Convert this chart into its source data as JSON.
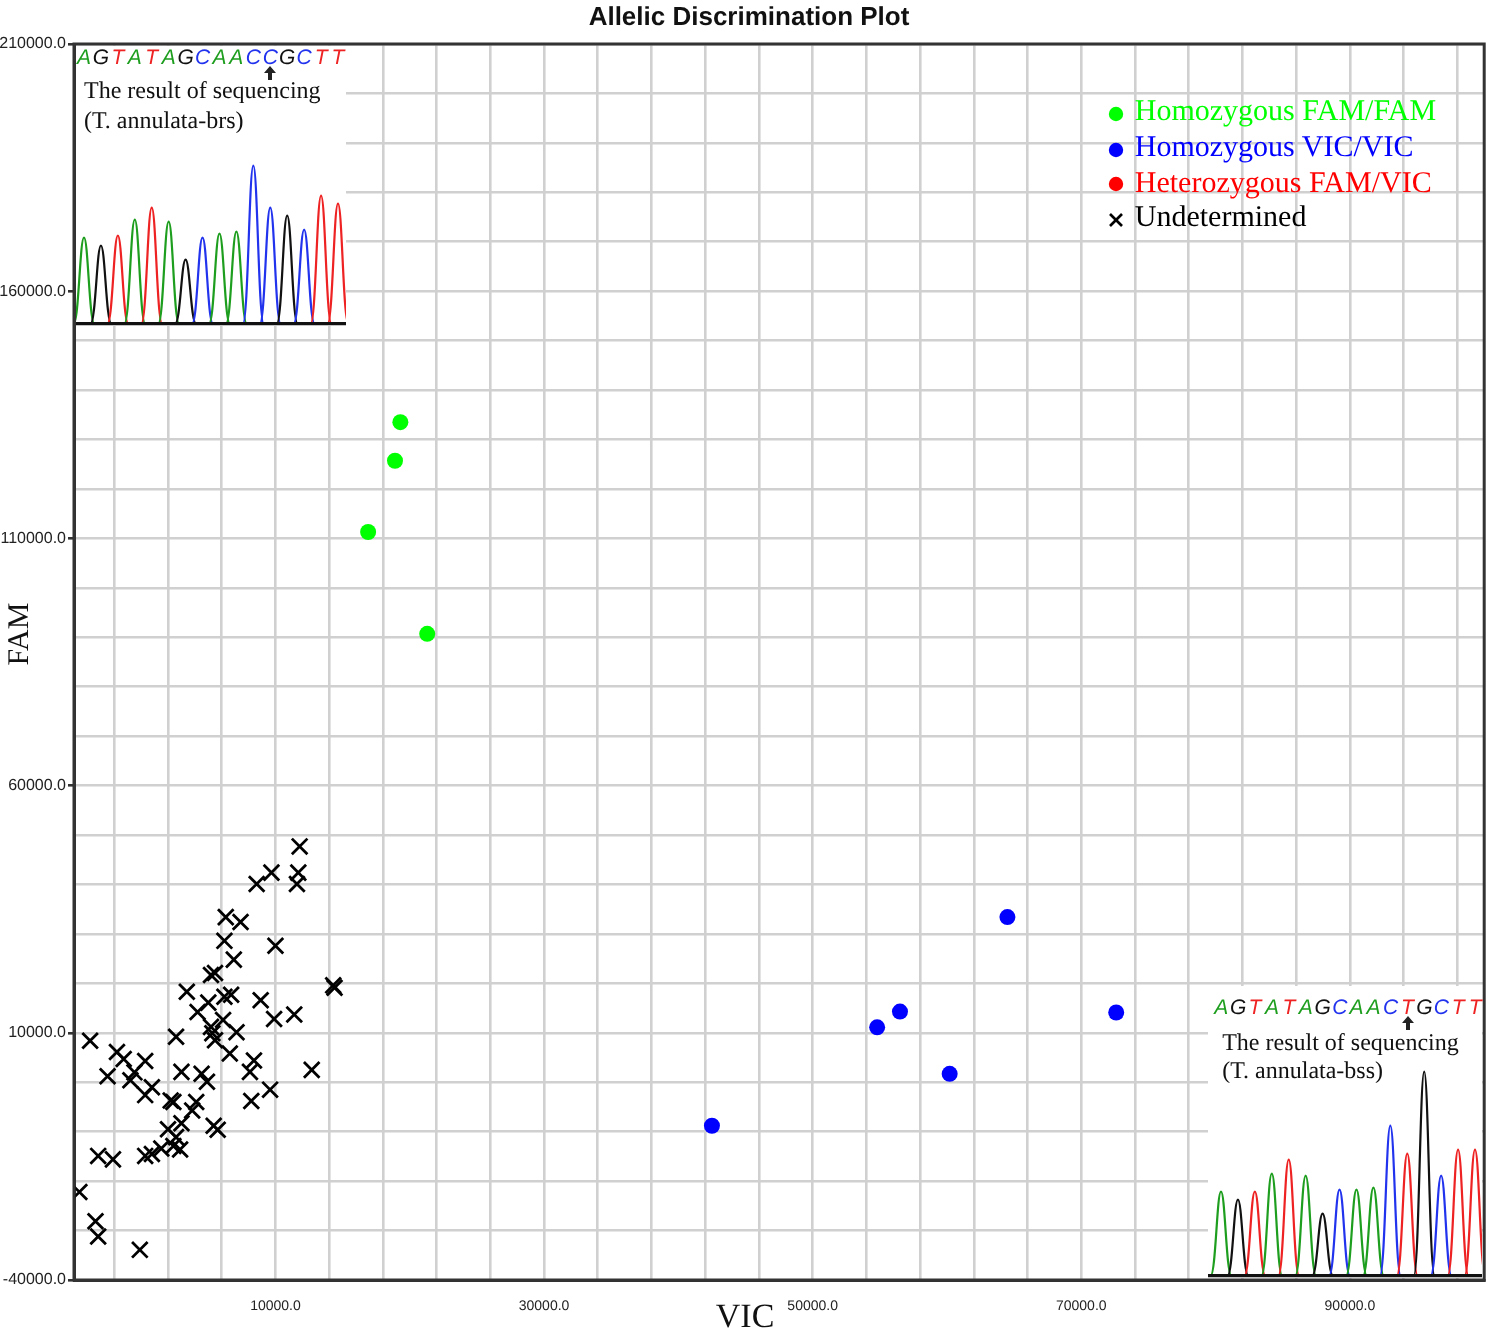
{
  "chart_data": {
    "type": "scatter",
    "title": "Allelic Discrimination Plot",
    "xlabel": "VIC",
    "ylabel": "FAM",
    "xlim": [
      -5000,
      100000
    ],
    "ylim": [
      -40000,
      210000
    ],
    "xticks": [
      {
        "value": -2000,
        "label": null
      },
      {
        "value": 2000,
        "label": null
      },
      {
        "value": 6000,
        "label": null
      },
      {
        "value": 10000,
        "label": "10000.0"
      },
      {
        "value": 14000,
        "label": null
      },
      {
        "value": 18000,
        "label": null
      },
      {
        "value": 22000,
        "label": null
      },
      {
        "value": 26000,
        "label": null
      },
      {
        "value": 30000,
        "label": "30000.0"
      },
      {
        "value": 34000,
        "label": null
      },
      {
        "value": 38000,
        "label": null
      },
      {
        "value": 42000,
        "label": null
      },
      {
        "value": 46000,
        "label": null
      },
      {
        "value": 50000,
        "label": "50000.0"
      },
      {
        "value": 54000,
        "label": null
      },
      {
        "value": 58000,
        "label": null
      },
      {
        "value": 62000,
        "label": null
      },
      {
        "value": 66000,
        "label": null
      },
      {
        "value": 70000,
        "label": "70000.0"
      },
      {
        "value": 74000,
        "label": null
      },
      {
        "value": 78000,
        "label": null
      },
      {
        "value": 82000,
        "label": null
      },
      {
        "value": 86000,
        "label": null
      },
      {
        "value": 90000,
        "label": "90000.0"
      },
      {
        "value": 94000,
        "label": null
      },
      {
        "value": 98000,
        "label": null
      }
    ],
    "yticks": [
      {
        "value": -40000,
        "label": "-40000.0"
      },
      {
        "value": -30000,
        "label": null
      },
      {
        "value": -20000,
        "label": null
      },
      {
        "value": -10000,
        "label": null
      },
      {
        "value": 0,
        "label": null
      },
      {
        "value": 10000,
        "label": "10000.0"
      },
      {
        "value": 20000,
        "label": null
      },
      {
        "value": 30000,
        "label": null
      },
      {
        "value": 40000,
        "label": null
      },
      {
        "value": 50000,
        "label": null
      },
      {
        "value": 60000,
        "label": "60000.0"
      },
      {
        "value": 70000,
        "label": null
      },
      {
        "value": 80000,
        "label": null
      },
      {
        "value": 90000,
        "label": null
      },
      {
        "value": 100000,
        "label": null
      },
      {
        "value": 110000,
        "label": "110000.0"
      },
      {
        "value": 120000,
        "label": null
      },
      {
        "value": 130000,
        "label": null
      },
      {
        "value": 140000,
        "label": null
      },
      {
        "value": 150000,
        "label": null
      },
      {
        "value": 160000,
        "label": "160000.0"
      },
      {
        "value": 170000,
        "label": null
      },
      {
        "value": 180000,
        "label": null
      },
      {
        "value": 190000,
        "label": null
      },
      {
        "value": 200000,
        "label": null
      },
      {
        "value": 210000,
        "label": "210000.0"
      }
    ],
    "grid": true,
    "legend": "top right",
    "marker": "circle",
    "annotations": [
      "AGTATAGCAACCGCTT",
      "The result of sequencing",
      "(T. annulata-brs)",
      "AGTATAGCAACTGCTT",
      "The result of sequencing",
      "(T. annulata-bss)"
    ],
    "series": [
      {
        "name": "Homozygous FAM/FAM",
        "color": "#00ff00",
        "x": [
          19300,
          18900,
          16900,
          21300
        ],
        "values": [
          133500,
          125700,
          111300,
          90700
        ]
      },
      {
        "name": "Homozygous VIC/VIC",
        "color": "#0000ff",
        "x": [
          64500,
          54800,
          56500,
          60200,
          72600,
          42500
        ],
        "values": [
          33400,
          11100,
          14300,
          1700,
          14100,
          -8800
        ]
      },
      {
        "name": "Heterozygous FAM/VIC",
        "color": "#ff0000"
      },
      {
        "name": "Undetermined",
        "color": "#000000",
        "marker": "cross",
        "x": [
          11800,
          9700,
          11700,
          8600,
          11600,
          6300,
          7400,
          6200,
          10000,
          6900,
          5500,
          5200,
          14300,
          14400,
          3400,
          6700,
          6200,
          8900,
          5000,
          4200,
          11400,
          9900,
          6100,
          5200,
          7100,
          5300,
          5500,
          2600,
          -3800,
          6600,
          -1800,
          -1300,
          300,
          8400,
          -2500,
          -500,
          -800,
          3000,
          4500,
          4900,
          8100,
          12700,
          800,
          300,
          9600,
          2200,
          2400,
          4100,
          8200,
          3800,
          3000,
          2000,
          2600,
          5400,
          5700,
          2900,
          2400,
          1500,
          800,
          300,
          -3200,
          -2100,
          -4600,
          -3400,
          -3200,
          -100
        ],
        "values": [
          47700,
          42400,
          42400,
          40100,
          40100,
          33400,
          32400,
          28600,
          27600,
          24800,
          22100,
          21700,
          19600,
          19100,
          18300,
          17700,
          17300,
          16600,
          16100,
          14200,
          13700,
          12800,
          12600,
          11200,
          10100,
          9900,
          8500,
          9200,
          8400,
          5800,
          6100,
          4700,
          4300,
          4400,
          1200,
          2000,
          400,
          2100,
          1700,
          100,
          2100,
          2500,
          -1000,
          -2600,
          -1500,
          -3700,
          -4000,
          -4000,
          -3800,
          -5700,
          -8300,
          -9500,
          -11100,
          -8800,
          -9600,
          -13600,
          -12900,
          -13400,
          -14500,
          -14900,
          -14900,
          -15600,
          -22200,
          -28100,
          -31200,
          -33900
        ]
      }
    ]
  }
}
